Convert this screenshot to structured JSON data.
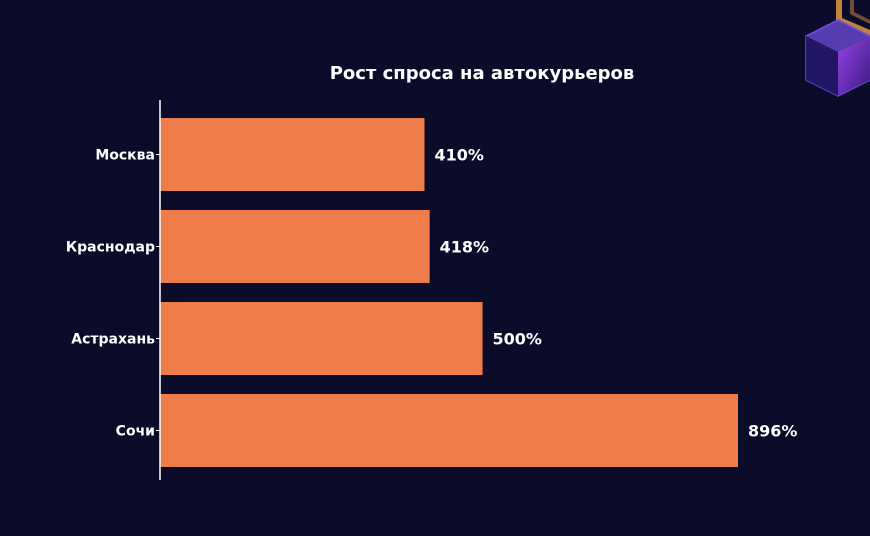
{
  "chart_data": {
    "type": "bar",
    "orientation": "horizontal",
    "title": "Рост спроса на автокурьеров",
    "xlabel": "",
    "ylabel": "",
    "categories": [
      "Москва",
      "Краснодар",
      "Астрахань",
      "Сочи"
    ],
    "values": [
      410,
      418,
      500,
      896
    ],
    "value_labels": [
      "410%",
      "418%",
      "500%",
      "896%"
    ],
    "xlim": [
      0,
      1000
    ],
    "grid": false,
    "legend": "none",
    "colors": {
      "background": "#0b0c2a",
      "bar": "#ef7d4c",
      "text": "#ffffff",
      "axis": "#ffffff",
      "decor_purple": "#7a3cff",
      "decor_orange": "#e08a3c"
    }
  },
  "decoration": {
    "icon": "purple-cube-icon"
  }
}
